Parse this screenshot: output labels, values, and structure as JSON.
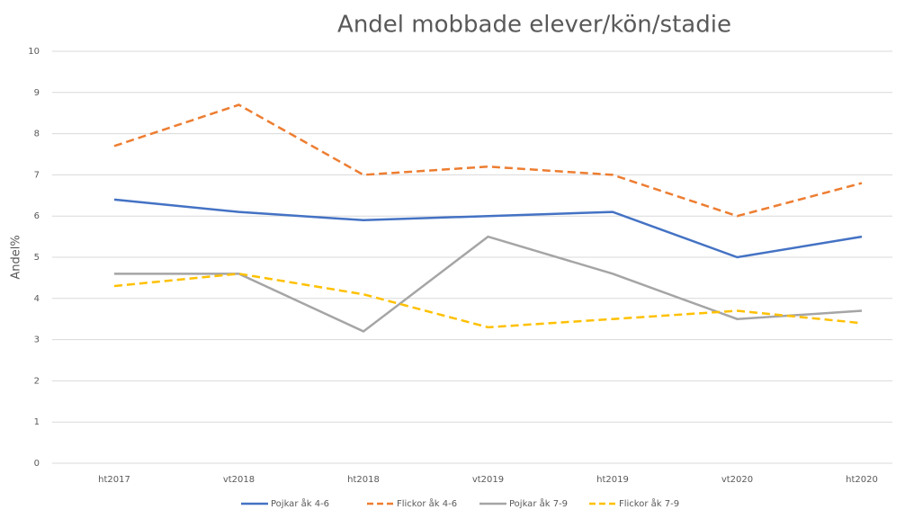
{
  "chart_data": {
    "type": "line",
    "title": "Andel mobbade elever/kön/stadie",
    "y_label": "Andel%",
    "categories": [
      "ht2017",
      "vt2018",
      "ht2018",
      "vt2019",
      "ht2019",
      "vt2020",
      "ht2020"
    ],
    "series": [
      {
        "name": "Pojkar åk 4-6",
        "color": "#4472c4",
        "dashed": false,
        "values": [
          6.4,
          6.1,
          5.9,
          6.0,
          6.1,
          5.0,
          5.5
        ]
      },
      {
        "name": "Flickor åk 4-6",
        "color": "#ed7d31",
        "dashed": true,
        "values": [
          7.7,
          8.7,
          7.0,
          7.2,
          7.0,
          6.0,
          6.8
        ]
      },
      {
        "name": "Pojkar åk 7-9",
        "color": "#a5a5a5",
        "dashed": false,
        "values": [
          4.6,
          4.6,
          3.2,
          5.5,
          4.6,
          3.5,
          3.7
        ]
      },
      {
        "name": "Flickor åk 7-9",
        "color": "#ffc000",
        "dashed": true,
        "values": [
          4.3,
          4.6,
          4.1,
          3.3,
          3.5,
          3.7,
          3.4
        ]
      }
    ],
    "ylim": [
      0,
      10
    ],
    "yticks": [
      0,
      1,
      2,
      3,
      4,
      5,
      6,
      7,
      8,
      9,
      10
    ],
    "grid": true,
    "legend": "bottom"
  }
}
